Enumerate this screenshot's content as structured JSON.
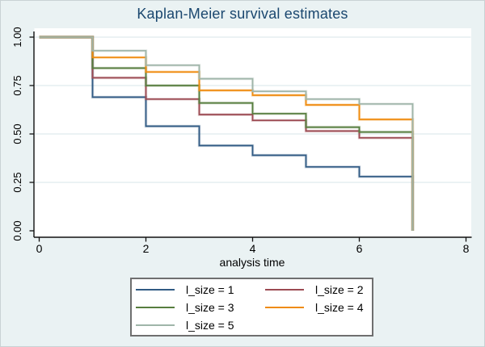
{
  "title": "Kaplan-Meier survival estimates",
  "x_axis": {
    "label": "analysis time",
    "tick_values": [
      0,
      2,
      4,
      6,
      8
    ],
    "tick_labels": [
      "0",
      "2",
      "4",
      "6",
      "8"
    ],
    "range": [
      0,
      8
    ]
  },
  "y_axis": {
    "tick_values": [
      0,
      0.25,
      0.5,
      0.75,
      1
    ],
    "tick_labels": [
      "0.00",
      "0.25",
      "0.50",
      "0.75",
      "1.00"
    ],
    "range": [
      0,
      1
    ]
  },
  "colors": {
    "background": "#eaf2f3",
    "plot_background": "#ffffff",
    "gridline": "#dfebee",
    "axis": "#111111",
    "title_text": "#1a476f",
    "legend_border": "#6f6f6f"
  },
  "chart_data": {
    "type": "line",
    "subtype": "step-survival",
    "title": "Kaplan-Meier survival estimates",
    "xlabel": "analysis time",
    "ylabel": "",
    "xlim": [
      0,
      8
    ],
    "ylim": [
      0,
      1
    ],
    "grid": "horizontal",
    "legend_position": "bottom",
    "x": [
      0,
      1,
      2,
      3,
      4,
      5,
      6,
      7
    ],
    "series": [
      {
        "name": "l_size = 1",
        "color": "#315b84",
        "survival": [
          1.0,
          0.69,
          0.54,
          0.44,
          0.39,
          0.33,
          0.28,
          0.0
        ]
      },
      {
        "name": "l_size = 2",
        "color": "#9c4a52",
        "survival": [
          1.0,
          0.79,
          0.68,
          0.6,
          0.57,
          0.515,
          0.48,
          0.0
        ]
      },
      {
        "name": "l_size = 3",
        "color": "#567d3e",
        "survival": [
          1.0,
          0.84,
          0.75,
          0.66,
          0.605,
          0.535,
          0.51,
          0.0
        ]
      },
      {
        "name": "l_size = 4",
        "color": "#ef8b0e",
        "survival": [
          1.0,
          0.895,
          0.82,
          0.725,
          0.7,
          0.65,
          0.575,
          0.0
        ]
      },
      {
        "name": "l_size = 5",
        "color": "#9fb5a9",
        "survival": [
          1.0,
          0.93,
          0.855,
          0.785,
          0.72,
          0.68,
          0.655,
          0.0
        ]
      }
    ]
  }
}
